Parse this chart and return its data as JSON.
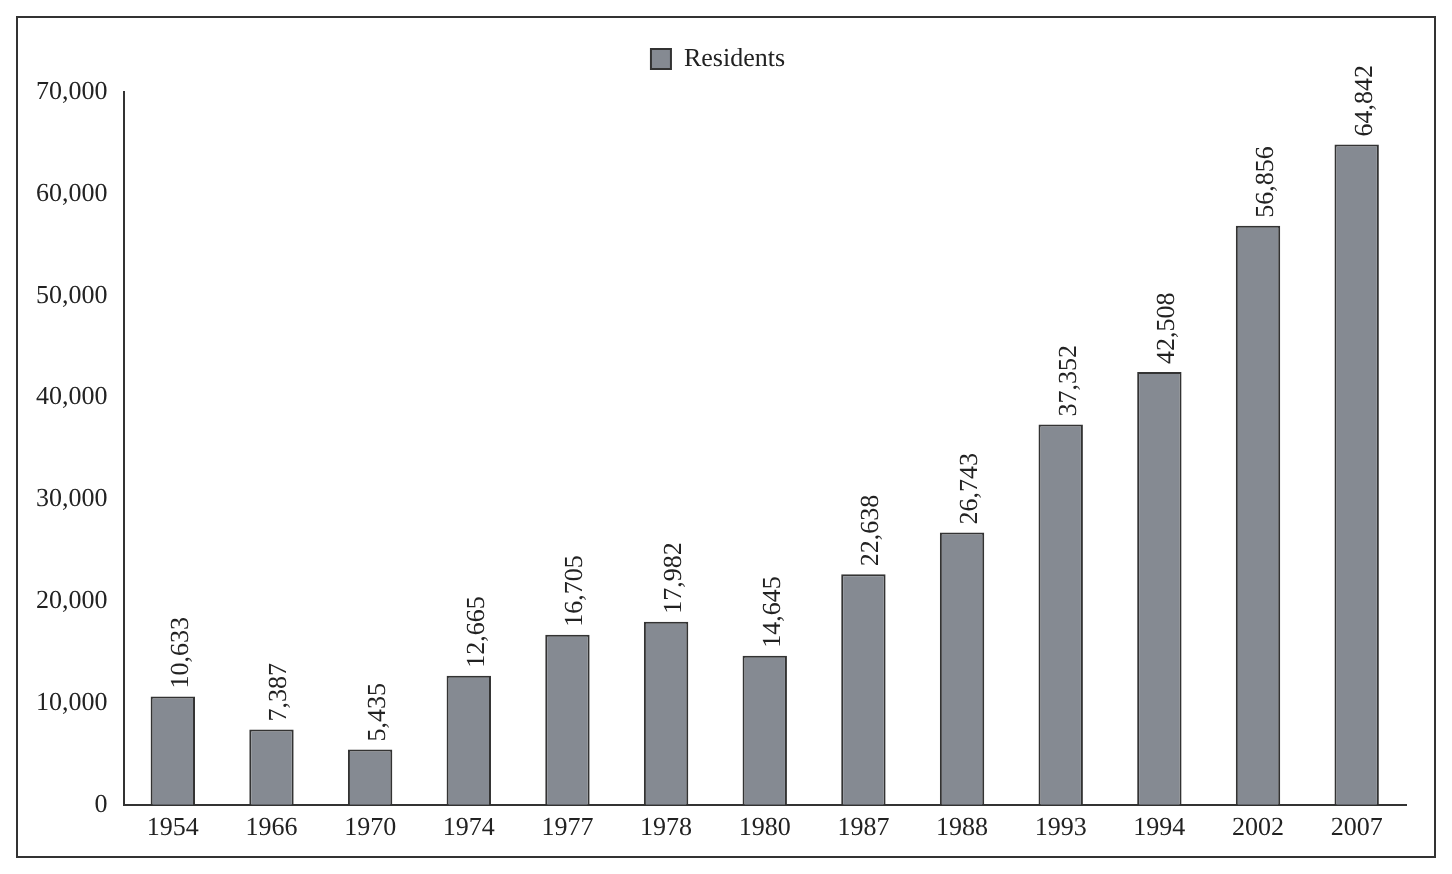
{
  "chart_data": {
    "type": "bar",
    "categories": [
      "1954",
      "1966",
      "1970",
      "1974",
      "1977",
      "1978",
      "1980",
      "1987",
      "1988",
      "1993",
      "1994",
      "2002",
      "2007"
    ],
    "series": [
      {
        "name": "Residents",
        "color": "#858a92",
        "values": [
          10633,
          7387,
          5435,
          12665,
          16705,
          17982,
          14645,
          22638,
          26743,
          37352,
          42508,
          56856,
          64842
        ],
        "value_labels": [
          "10,633",
          "7,387",
          "5,435",
          "12,665",
          "16,705",
          "17,982",
          "14,645",
          "22,638",
          "26,743",
          "37,352",
          "42,508",
          "56,856",
          "64,842"
        ]
      }
    ],
    "ylim": [
      0,
      70000
    ],
    "yticks": [
      {
        "value": 0,
        "label": "0"
      },
      {
        "value": 10000,
        "label": "10,000"
      },
      {
        "value": 20000,
        "label": "20,000"
      },
      {
        "value": 30000,
        "label": "30,000"
      },
      {
        "value": 40000,
        "label": "40,000"
      },
      {
        "value": 50000,
        "label": "50,000"
      },
      {
        "value": 60000,
        "label": "60,000"
      },
      {
        "value": 70000,
        "label": "70,000"
      }
    ],
    "legend": "top",
    "grid": false
  }
}
